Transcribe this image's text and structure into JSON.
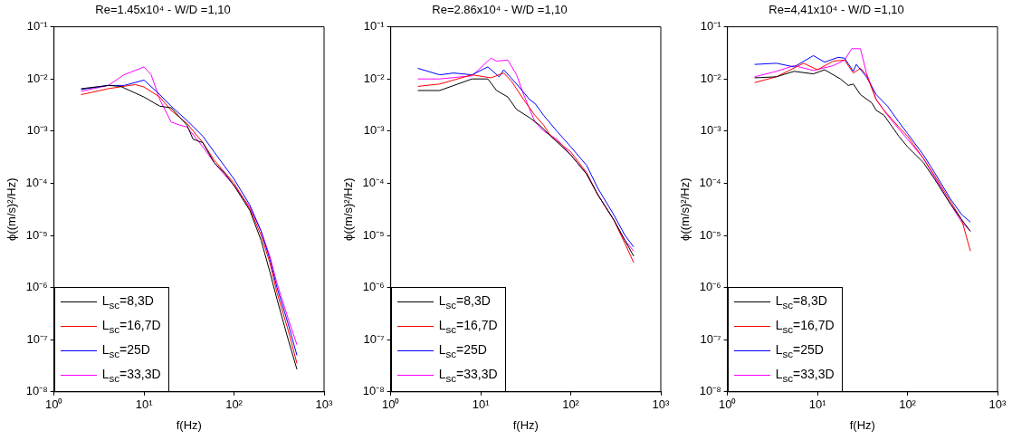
{
  "chart_data": [
    {
      "type": "line",
      "title": "Re=1.45x10⁴ - W/D =1,10",
      "xlabel": "f(Hz)",
      "ylabel": "ϕ((m/s)²/Hz)",
      "log": "xy",
      "grid": false,
      "legend": "bottom left",
      "marker": "none",
      "xlim": [
        1,
        1000
      ],
      "ylim": [
        1e-08,
        0.1
      ],
      "xticks": [
        {
          "value": 1,
          "label": "10⁰"
        },
        {
          "value": 10,
          "label": "10¹"
        },
        {
          "value": 100,
          "label": "10²"
        },
        {
          "value": 1000,
          "label": "10³"
        }
      ],
      "yticks": [
        {
          "value": 1e-08,
          "label": "10⁻⁸"
        },
        {
          "value": 1e-07,
          "label": "10⁻⁷"
        },
        {
          "value": 1e-06,
          "label": "10⁻⁶"
        },
        {
          "value": 1e-05,
          "label": "10⁻⁵"
        },
        {
          "value": 0.0001,
          "label": "10⁻⁴"
        },
        {
          "value": 0.001,
          "label": "10⁻³"
        },
        {
          "value": 0.01,
          "label": "10⁻²"
        },
        {
          "value": 0.1,
          "label": "10⁻¹"
        }
      ],
      "series": [
        {
          "name": "L$_{sc}$=8,3D",
          "color": "#000000",
          "x": [
            2,
            4,
            5.5,
            10,
            15,
            20,
            30,
            35,
            45,
            60,
            80,
            100,
            150,
            200,
            250,
            300,
            400,
            500
          ],
          "values": [
            0.0065,
            0.0075,
            0.0072,
            0.0045,
            0.003,
            0.0028,
            0.0013,
            0.0007,
            0.0006,
            0.00025,
            0.00015,
            9e-05,
            3e-05,
            8e-06,
            2e-06,
            6e-07,
            1e-07,
            2.7e-08
          ]
        },
        {
          "name": "L$_{sc}$=16,7D",
          "color": "#ff0000",
          "x": [
            2,
            4,
            8,
            10,
            15,
            20,
            30,
            45,
            60,
            100,
            150,
            200,
            250,
            300,
            400,
            500
          ],
          "values": [
            0.005,
            0.0065,
            0.0078,
            0.007,
            0.0045,
            0.0025,
            0.0014,
            0.0006,
            0.00028,
            0.0001,
            3.2e-05,
            1e-05,
            3e-06,
            8e-07,
            1.5e-07,
            3.5e-08
          ]
        },
        {
          "name": "L$_{sc}$=25D",
          "color": "#0000ff",
          "x": [
            2,
            4,
            6,
            10,
            15,
            20,
            30,
            45,
            60,
            100,
            150,
            200,
            250,
            300,
            400,
            500
          ],
          "values": [
            0.0063,
            0.0075,
            0.0075,
            0.0095,
            0.005,
            0.003,
            0.0016,
            0.0008,
            0.0004,
            0.00012,
            3.8e-05,
            1.2e-05,
            3.5e-06,
            1e-06,
            2e-07,
            5e-08
          ]
        },
        {
          "name": "L$_{sc}$=33,3D",
          "color": "#ff00ff",
          "x": [
            2,
            4,
            6,
            10,
            12,
            15,
            20,
            25,
            30,
            45,
            60,
            100,
            150,
            200,
            250,
            300,
            400,
            500
          ],
          "values": [
            0.0058,
            0.0075,
            0.012,
            0.017,
            0.012,
            0.004,
            0.0015,
            0.0013,
            0.0012,
            0.0005,
            0.00025,
            9e-05,
            3.5e-05,
            1.2e-05,
            4e-06,
            1.2e-06,
            2.5e-07,
            8e-08
          ]
        }
      ]
    },
    {
      "type": "line",
      "title": "Re=2.86x10⁴ - W/D =1,10",
      "xlabel": "f(Hz)",
      "ylabel": "ϕ((m/s)²/Hz)",
      "log": "xy",
      "grid": false,
      "legend": "bottom left",
      "marker": "none",
      "xlim": [
        1,
        1000
      ],
      "ylim": [
        1e-08,
        0.1
      ],
      "xticks": [
        {
          "value": 1,
          "label": "10⁰"
        },
        {
          "value": 10,
          "label": "10¹"
        },
        {
          "value": 100,
          "label": "10²"
        },
        {
          "value": 1000,
          "label": "10³"
        }
      ],
      "yticks": [
        {
          "value": 1e-08,
          "label": "10⁻⁸"
        },
        {
          "value": 1e-07,
          "label": "10⁻⁷"
        },
        {
          "value": 1e-06,
          "label": "10⁻⁶"
        },
        {
          "value": 1e-05,
          "label": "10⁻⁵"
        },
        {
          "value": 0.0001,
          "label": "10⁻⁴"
        },
        {
          "value": 0.001,
          "label": "10⁻³"
        },
        {
          "value": 0.01,
          "label": "10⁻²"
        },
        {
          "value": 0.1,
          "label": "10⁻¹"
        }
      ],
      "series": [
        {
          "name": "L$_{sc}$=8,3D",
          "color": "#000000",
          "x": [
            2,
            3.5,
            8,
            12,
            15,
            20,
            25,
            35,
            45,
            60,
            100,
            150,
            200,
            300,
            400,
            500
          ],
          "values": [
            0.006,
            0.006,
            0.01,
            0.01,
            0.006,
            0.0045,
            0.0026,
            0.0018,
            0.0013,
            0.0008,
            0.00035,
            0.00015,
            6e-05,
            2e-05,
            8e-06,
            4e-06
          ]
        },
        {
          "name": "L$_{sc}$=16,7D",
          "color": "#ff0000",
          "x": [
            2,
            3.5,
            8,
            13,
            18,
            22,
            30,
            40,
            50,
            60,
            100,
            150,
            200,
            300,
            400,
            500
          ],
          "values": [
            0.0072,
            0.008,
            0.012,
            0.0105,
            0.013,
            0.009,
            0.004,
            0.002,
            0.0013,
            0.0008,
            0.0004,
            0.00016,
            6e-05,
            2e-05,
            7e-06,
            3e-06
          ]
        },
        {
          "name": "L$_{sc}$=25D",
          "color": "#0000ff",
          "x": [
            2,
            3.5,
            5,
            8,
            12,
            16,
            18,
            25,
            35,
            40,
            50,
            70,
            100,
            150,
            200,
            300,
            400,
            500
          ],
          "values": [
            0.016,
            0.012,
            0.013,
            0.012,
            0.017,
            0.011,
            0.015,
            0.008,
            0.004,
            0.0034,
            0.002,
            0.001,
            0.0005,
            0.00022,
            8e-05,
            2.5e-05,
            1e-05,
            6e-06
          ]
        },
        {
          "name": "L$_{sc}$=33,3D",
          "color": "#ff00ff",
          "x": [
            2,
            3.5,
            8,
            13,
            15,
            20,
            25,
            30,
            40,
            50,
            70,
            100,
            150,
            200,
            300,
            400,
            500
          ],
          "values": [
            0.01,
            0.01,
            0.0115,
            0.025,
            0.022,
            0.023,
            0.012,
            0.005,
            0.0015,
            0.001,
            0.0007,
            0.00035,
            0.00015,
            6e-05,
            2e-05,
            8e-06,
            5e-06
          ]
        }
      ]
    },
    {
      "type": "line",
      "title": "Re=4,41x10⁴ - W/D =1,10",
      "xlabel": "f(Hz)",
      "ylabel": "ϕ((m/s)²/Hz)",
      "log": "xy",
      "grid": false,
      "legend": "bottom left",
      "marker": "none",
      "xlim": [
        1,
        1000
      ],
      "ylim": [
        1e-08,
        0.1
      ],
      "xticks": [
        {
          "value": 1,
          "label": "10⁰"
        },
        {
          "value": 10,
          "label": "10¹"
        },
        {
          "value": 100,
          "label": "10²"
        },
        {
          "value": 1000,
          "label": "10³"
        }
      ],
      "yticks": [
        {
          "value": 1e-08,
          "label": "10⁻⁸"
        },
        {
          "value": 1e-07,
          "label": "10⁻⁷"
        },
        {
          "value": 1e-06,
          "label": "10⁻⁶"
        },
        {
          "value": 1e-05,
          "label": "10⁻⁵"
        },
        {
          "value": 0.0001,
          "label": "10⁻⁴"
        },
        {
          "value": 0.001,
          "label": "10⁻³"
        },
        {
          "value": 0.01,
          "label": "10⁻²"
        },
        {
          "value": 0.1,
          "label": "10⁻¹"
        }
      ],
      "series": [
        {
          "name": "L$_{sc}$=8,3D",
          "color": "#000000",
          "x": [
            2,
            3.5,
            5.5,
            9,
            12,
            18,
            22,
            25,
            30,
            40,
            45,
            55,
            80,
            100,
            150,
            200,
            300,
            400,
            500
          ],
          "values": [
            0.0105,
            0.011,
            0.014,
            0.0125,
            0.015,
            0.01,
            0.0075,
            0.008,
            0.005,
            0.0035,
            0.0025,
            0.002,
            0.0008,
            0.0005,
            0.00025,
            0.00012,
            4e-05,
            2e-05,
            1.2e-05
          ]
        },
        {
          "name": "L$_{sc}$=16,7D",
          "color": "#ff0000",
          "x": [
            2,
            3.5,
            7,
            10,
            15,
            20,
            25,
            30,
            35,
            45,
            55,
            80,
            100,
            150,
            200,
            300,
            400,
            500
          ],
          "values": [
            0.0085,
            0.011,
            0.02,
            0.015,
            0.022,
            0.023,
            0.013,
            0.016,
            0.012,
            0.004,
            0.0025,
            0.0012,
            0.0008,
            0.0003,
            0.00014,
            4.5e-05,
            2e-05,
            5e-06
          ]
        },
        {
          "name": "L$_{sc}$=25D",
          "color": "#0000ff",
          "x": [
            2,
            3.5,
            5.5,
            9,
            12,
            17,
            20,
            25,
            27,
            35,
            45,
            60,
            80,
            100,
            150,
            200,
            300,
            400,
            500
          ],
          "values": [
            0.019,
            0.02,
            0.017,
            0.028,
            0.021,
            0.026,
            0.025,
            0.014,
            0.019,
            0.011,
            0.005,
            0.003,
            0.0015,
            0.0009,
            0.00035,
            0.00016,
            5e-05,
            2.5e-05,
            1.8e-05
          ]
        },
        {
          "name": "L$_{sc}$=33,3D",
          "color": "#ff00ff",
          "x": [
            2,
            3.5,
            5.5,
            9,
            15,
            20,
            24,
            30,
            35,
            45,
            60,
            80,
            100,
            150,
            200,
            300,
            400,
            500
          ],
          "values": [
            0.011,
            0.014,
            0.018,
            0.0145,
            0.018,
            0.023,
            0.038,
            0.038,
            0.013,
            0.004,
            0.002,
            0.0011,
            0.0007,
            0.0003,
            0.00013,
            4e-05,
            1.8e-05,
            1.2e-05
          ]
        }
      ]
    }
  ]
}
